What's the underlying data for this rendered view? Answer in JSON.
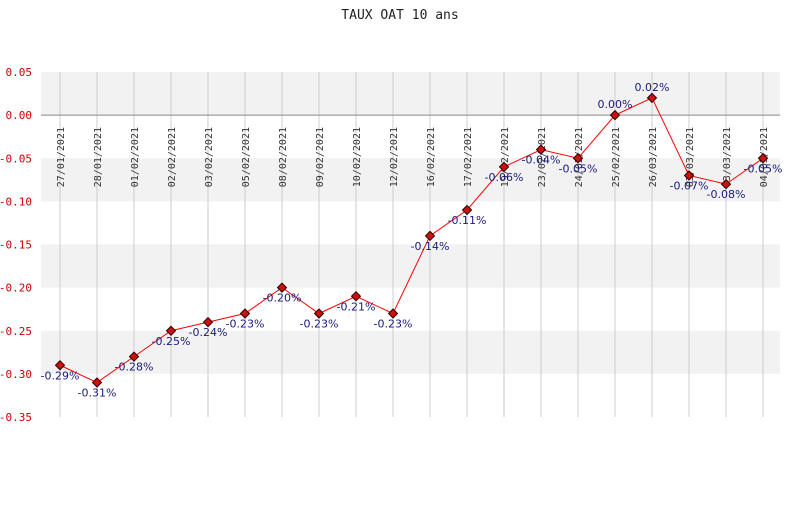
{
  "chart_data": {
    "type": "line",
    "title": "TAUX OAT 10 ans",
    "xlabel": "",
    "ylabel": "",
    "ylim": [
      -0.35,
      0.05
    ],
    "yticks": [
      0.05,
      0.0,
      -0.05,
      -0.1,
      -0.15,
      -0.2,
      -0.25,
      -0.3,
      -0.35
    ],
    "ytick_labels": [
      "0.05",
      "0.00",
      "-0.05",
      "-0.10",
      "-0.15",
      "-0.20",
      "-0.25",
      "-0.30",
      "-0.35"
    ],
    "categories": [
      "27/01/2021",
      "28/01/2021",
      "01/02/2021",
      "02/02/2021",
      "03/02/2021",
      "05/02/2021",
      "08/02/2021",
      "09/02/2021",
      "10/02/2021",
      "12/02/2021",
      "16/02/2021",
      "17/02/2021",
      "19/02/2021",
      "23/02/2021",
      "24/02/2021",
      "25/02/2021",
      "26/03/2021",
      "03/03/2021",
      "03/03/2021",
      "04/03/2021"
    ],
    "series": [
      {
        "values": [
          -0.29,
          -0.31,
          -0.28,
          -0.25,
          -0.24,
          -0.23,
          -0.2,
          -0.23,
          -0.21,
          -0.23,
          -0.14,
          -0.11,
          -0.06,
          -0.04,
          -0.05,
          0.0,
          0.02,
          -0.07,
          -0.08,
          -0.05
        ],
        "labels": [
          "-0.29%",
          "-0.31%",
          "-0.28%",
          "-0.25%",
          "-0.24%",
          "-0.23%",
          "-0.20%",
          "-0.23%",
          "-0.21%",
          "-0.23%",
          "-0.14%",
          "-0.11%",
          "-0.06%",
          "-0.04%",
          "-0.05%",
          "0.00%",
          "0.02%",
          "-0.07%",
          "-0.08%",
          "-0.05%"
        ]
      }
    ],
    "grid": true,
    "legend": "none",
    "colors": {
      "line": "#ff0000",
      "marker_fill": "#cc1111",
      "marker_stroke": "#330000",
      "band": "#f2f2f2",
      "gridline": "#cccccc",
      "zero_line": "#888888"
    }
  }
}
